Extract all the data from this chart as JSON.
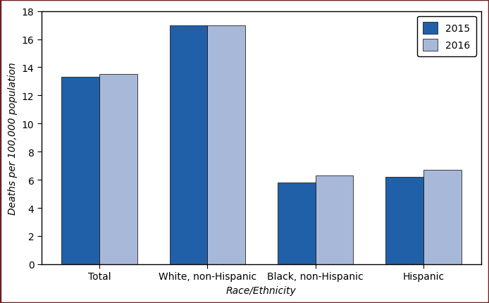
{
  "categories": [
    "Total",
    "White, non-Hispanic",
    "Black, non-Hispanic",
    "Hispanic"
  ],
  "values_2015": [
    13.3,
    17.0,
    5.8,
    6.2
  ],
  "values_2016": [
    13.5,
    17.0,
    6.3,
    6.7
  ],
  "color_2015": "#2060a8",
  "color_2016": "#a8b8d8",
  "legend_labels": [
    "2015",
    "2016"
  ],
  "ylabel": "Deaths per 100,000 population",
  "xlabel": "Race/Ethnicity",
  "ylim": [
    0,
    18
  ],
  "yticks": [
    0,
    2,
    4,
    6,
    8,
    10,
    12,
    14,
    16,
    18
  ],
  "bar_width": 0.35,
  "bar_edge_color": "#000000",
  "spine_color": "#000000",
  "outer_border_color": "#6b2020",
  "background_color": "#ffffff",
  "axis_fontsize": 10,
  "tick_fontsize": 10,
  "legend_fontsize": 10,
  "legend_edge_color": "#000000"
}
